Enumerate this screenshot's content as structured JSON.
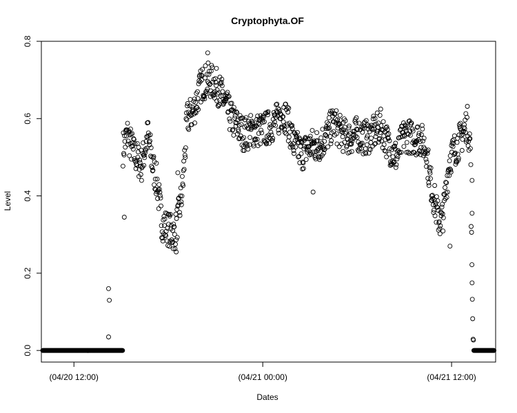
{
  "chart_data": {
    "type": "scatter",
    "title": "Cryptophyta.OF",
    "xlabel": "Dates",
    "ylabel": "Level",
    "ylim": [
      -0.03,
      0.8
    ],
    "xlim": [
      -2.07,
      26.8
    ],
    "x_unit": "hours",
    "x_ticks": [
      {
        "value": 0,
        "label": "(04/20 12:00)"
      },
      {
        "value": 12,
        "label": "(04/21 00:00)"
      },
      {
        "value": 24,
        "label": "(04/21 12:00)"
      }
    ],
    "y_ticks": [
      {
        "value": 0.0,
        "label": "0.0"
      },
      {
        "value": 0.2,
        "label": "0.2"
      },
      {
        "value": 0.4,
        "label": "0.4"
      },
      {
        "value": 0.6,
        "label": "0.6"
      },
      {
        "value": 0.8,
        "label": "0.8"
      }
    ],
    "grid": false,
    "marker": "open-circle",
    "color": "#000000",
    "series_profile": [
      [
        -2.9,
        0.0
      ],
      [
        3.1,
        0.0
      ],
      [
        3.1,
        0.52
      ],
      [
        3.4,
        0.56
      ],
      [
        3.8,
        0.51
      ],
      [
        4.3,
        0.48
      ],
      [
        4.7,
        0.56
      ],
      [
        5.0,
        0.48
      ],
      [
        5.3,
        0.43
      ],
      [
        5.5,
        0.36
      ],
      [
        5.6,
        0.33
      ],
      [
        6.4,
        0.3
      ],
      [
        6.7,
        0.36
      ],
      [
        6.9,
        0.42
      ],
      [
        7.2,
        0.6
      ],
      [
        7.6,
        0.62
      ],
      [
        8.1,
        0.69
      ],
      [
        8.5,
        0.7
      ],
      [
        9.0,
        0.69
      ],
      [
        9.4,
        0.66
      ],
      [
        10.0,
        0.6
      ],
      [
        10.8,
        0.56
      ],
      [
        11.4,
        0.57
      ],
      [
        12.0,
        0.57
      ],
      [
        12.5,
        0.58
      ],
      [
        13.0,
        0.6
      ],
      [
        13.3,
        0.62
      ],
      [
        13.6,
        0.59
      ],
      [
        14.0,
        0.53
      ],
      [
        14.5,
        0.51
      ],
      [
        15.0,
        0.53
      ],
      [
        15.5,
        0.53
      ],
      [
        16.0,
        0.55
      ],
      [
        16.5,
        0.59
      ],
      [
        17.0,
        0.56
      ],
      [
        17.5,
        0.55
      ],
      [
        18.0,
        0.56
      ],
      [
        18.5,
        0.55
      ],
      [
        19.0,
        0.56
      ],
      [
        19.5,
        0.58
      ],
      [
        20.0,
        0.53
      ],
      [
        20.5,
        0.5
      ],
      [
        21.0,
        0.56
      ],
      [
        21.5,
        0.55
      ],
      [
        22.0,
        0.55
      ],
      [
        22.4,
        0.52
      ],
      [
        22.6,
        0.45
      ],
      [
        22.9,
        0.39
      ],
      [
        23.1,
        0.35
      ],
      [
        23.3,
        0.33
      ],
      [
        23.5,
        0.36
      ],
      [
        23.7,
        0.44
      ],
      [
        23.9,
        0.5
      ],
      [
        24.2,
        0.52
      ],
      [
        24.6,
        0.55
      ],
      [
        25.0,
        0.59
      ],
      [
        25.2,
        0.53
      ],
      [
        25.3,
        0.17
      ],
      [
        25.4,
        0.0
      ],
      [
        30.9,
        0.0
      ]
    ],
    "outliers": [
      [
        2.2,
        0.16
      ],
      [
        2.25,
        0.13
      ],
      [
        2.2,
        0.035
      ],
      [
        3.2,
        0.345
      ],
      [
        6.5,
        0.255
      ],
      [
        6.6,
        0.46
      ],
      [
        8.5,
        0.77
      ],
      [
        15.2,
        0.41
      ],
      [
        23.9,
        0.27
      ],
      [
        25.3,
        0.175
      ],
      [
        25.3,
        0.355
      ],
      [
        25.3,
        0.44
      ]
    ]
  }
}
